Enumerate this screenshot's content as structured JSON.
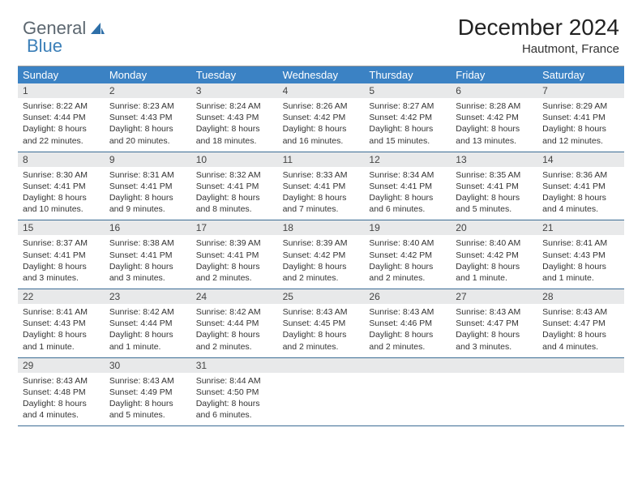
{
  "brand": {
    "part1": "General",
    "part2": "Blue"
  },
  "title": "December 2024",
  "location": "Hautmont, France",
  "colors": {
    "header_bg": "#3b82c4",
    "header_text": "#ffffff",
    "daynum_bg": "#e8e9ea",
    "week_border": "#3b6c94",
    "brand_gray": "#5c6770",
    "brand_blue": "#3b7fb8",
    "page_bg": "#ffffff"
  },
  "typography": {
    "title_fontsize": 28,
    "location_fontsize": 15,
    "dow_fontsize": 13,
    "daynum_fontsize": 12,
    "body_fontsize": 10.5
  },
  "daysOfWeek": [
    "Sunday",
    "Monday",
    "Tuesday",
    "Wednesday",
    "Thursday",
    "Friday",
    "Saturday"
  ],
  "weeks": [
    [
      {
        "n": "1",
        "sr": "Sunrise: 8:22 AM",
        "ss": "Sunset: 4:44 PM",
        "dl": "Daylight: 8 hours and 22 minutes."
      },
      {
        "n": "2",
        "sr": "Sunrise: 8:23 AM",
        "ss": "Sunset: 4:43 PM",
        "dl": "Daylight: 8 hours and 20 minutes."
      },
      {
        "n": "3",
        "sr": "Sunrise: 8:24 AM",
        "ss": "Sunset: 4:43 PM",
        "dl": "Daylight: 8 hours and 18 minutes."
      },
      {
        "n": "4",
        "sr": "Sunrise: 8:26 AM",
        "ss": "Sunset: 4:42 PM",
        "dl": "Daylight: 8 hours and 16 minutes."
      },
      {
        "n": "5",
        "sr": "Sunrise: 8:27 AM",
        "ss": "Sunset: 4:42 PM",
        "dl": "Daylight: 8 hours and 15 minutes."
      },
      {
        "n": "6",
        "sr": "Sunrise: 8:28 AM",
        "ss": "Sunset: 4:42 PM",
        "dl": "Daylight: 8 hours and 13 minutes."
      },
      {
        "n": "7",
        "sr": "Sunrise: 8:29 AM",
        "ss": "Sunset: 4:41 PM",
        "dl": "Daylight: 8 hours and 12 minutes."
      }
    ],
    [
      {
        "n": "8",
        "sr": "Sunrise: 8:30 AM",
        "ss": "Sunset: 4:41 PM",
        "dl": "Daylight: 8 hours and 10 minutes."
      },
      {
        "n": "9",
        "sr": "Sunrise: 8:31 AM",
        "ss": "Sunset: 4:41 PM",
        "dl": "Daylight: 8 hours and 9 minutes."
      },
      {
        "n": "10",
        "sr": "Sunrise: 8:32 AM",
        "ss": "Sunset: 4:41 PM",
        "dl": "Daylight: 8 hours and 8 minutes."
      },
      {
        "n": "11",
        "sr": "Sunrise: 8:33 AM",
        "ss": "Sunset: 4:41 PM",
        "dl": "Daylight: 8 hours and 7 minutes."
      },
      {
        "n": "12",
        "sr": "Sunrise: 8:34 AM",
        "ss": "Sunset: 4:41 PM",
        "dl": "Daylight: 8 hours and 6 minutes."
      },
      {
        "n": "13",
        "sr": "Sunrise: 8:35 AM",
        "ss": "Sunset: 4:41 PM",
        "dl": "Daylight: 8 hours and 5 minutes."
      },
      {
        "n": "14",
        "sr": "Sunrise: 8:36 AM",
        "ss": "Sunset: 4:41 PM",
        "dl": "Daylight: 8 hours and 4 minutes."
      }
    ],
    [
      {
        "n": "15",
        "sr": "Sunrise: 8:37 AM",
        "ss": "Sunset: 4:41 PM",
        "dl": "Daylight: 8 hours and 3 minutes."
      },
      {
        "n": "16",
        "sr": "Sunrise: 8:38 AM",
        "ss": "Sunset: 4:41 PM",
        "dl": "Daylight: 8 hours and 3 minutes."
      },
      {
        "n": "17",
        "sr": "Sunrise: 8:39 AM",
        "ss": "Sunset: 4:41 PM",
        "dl": "Daylight: 8 hours and 2 minutes."
      },
      {
        "n": "18",
        "sr": "Sunrise: 8:39 AM",
        "ss": "Sunset: 4:42 PM",
        "dl": "Daylight: 8 hours and 2 minutes."
      },
      {
        "n": "19",
        "sr": "Sunrise: 8:40 AM",
        "ss": "Sunset: 4:42 PM",
        "dl": "Daylight: 8 hours and 2 minutes."
      },
      {
        "n": "20",
        "sr": "Sunrise: 8:40 AM",
        "ss": "Sunset: 4:42 PM",
        "dl": "Daylight: 8 hours and 1 minute."
      },
      {
        "n": "21",
        "sr": "Sunrise: 8:41 AM",
        "ss": "Sunset: 4:43 PM",
        "dl": "Daylight: 8 hours and 1 minute."
      }
    ],
    [
      {
        "n": "22",
        "sr": "Sunrise: 8:41 AM",
        "ss": "Sunset: 4:43 PM",
        "dl": "Daylight: 8 hours and 1 minute."
      },
      {
        "n": "23",
        "sr": "Sunrise: 8:42 AM",
        "ss": "Sunset: 4:44 PM",
        "dl": "Daylight: 8 hours and 1 minute."
      },
      {
        "n": "24",
        "sr": "Sunrise: 8:42 AM",
        "ss": "Sunset: 4:44 PM",
        "dl": "Daylight: 8 hours and 2 minutes."
      },
      {
        "n": "25",
        "sr": "Sunrise: 8:43 AM",
        "ss": "Sunset: 4:45 PM",
        "dl": "Daylight: 8 hours and 2 minutes."
      },
      {
        "n": "26",
        "sr": "Sunrise: 8:43 AM",
        "ss": "Sunset: 4:46 PM",
        "dl": "Daylight: 8 hours and 2 minutes."
      },
      {
        "n": "27",
        "sr": "Sunrise: 8:43 AM",
        "ss": "Sunset: 4:47 PM",
        "dl": "Daylight: 8 hours and 3 minutes."
      },
      {
        "n": "28",
        "sr": "Sunrise: 8:43 AM",
        "ss": "Sunset: 4:47 PM",
        "dl": "Daylight: 8 hours and 4 minutes."
      }
    ],
    [
      {
        "n": "29",
        "sr": "Sunrise: 8:43 AM",
        "ss": "Sunset: 4:48 PM",
        "dl": "Daylight: 8 hours and 4 minutes."
      },
      {
        "n": "30",
        "sr": "Sunrise: 8:43 AM",
        "ss": "Sunset: 4:49 PM",
        "dl": "Daylight: 8 hours and 5 minutes."
      },
      {
        "n": "31",
        "sr": "Sunrise: 8:44 AM",
        "ss": "Sunset: 4:50 PM",
        "dl": "Daylight: 8 hours and 6 minutes."
      },
      null,
      null,
      null,
      null
    ]
  ]
}
